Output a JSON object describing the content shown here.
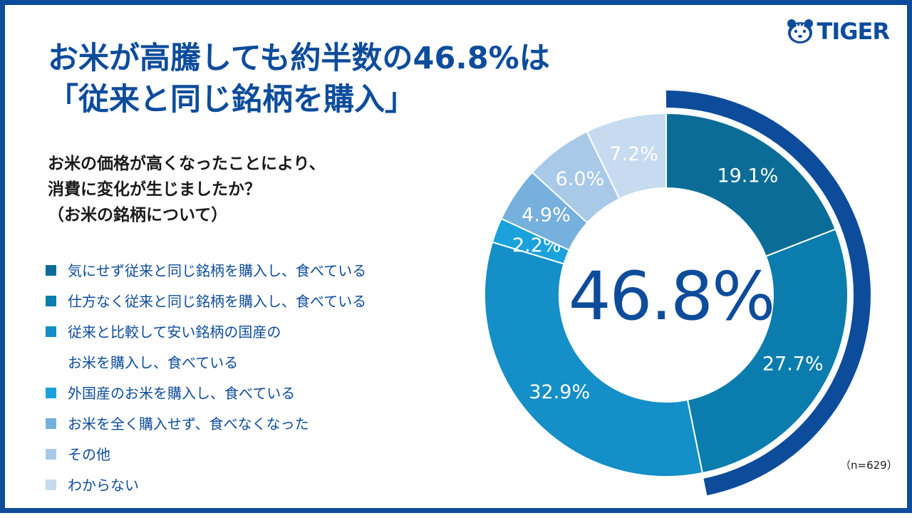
{
  "brand": {
    "name": "TIGER",
    "color": "#0d4c9b"
  },
  "title": {
    "line1": "お米が高騰しても約半数の46.8%は",
    "line2": "「従来と同じ銘柄を購入」"
  },
  "question": {
    "line1": "お米の価格が高くなったことにより、",
    "line2": "消費に変化が生じましたか？",
    "line3": "（お米の銘柄について）"
  },
  "center_value": "46.8%",
  "sample_size": "（n=629）",
  "chart_data": {
    "type": "pie",
    "unit": "%",
    "title": "",
    "slices": [
      {
        "label": "気にせず従来と同じ銘柄を購入し、食べている",
        "value": 19.1,
        "display": "19.1%",
        "color": "#0b6d97"
      },
      {
        "label": "仕方なく従来と同じ銘柄を購入し、食べている",
        "value": 27.7,
        "display": "27.7%",
        "color": "#0a7cad"
      },
      {
        "label": "従来と比較して安い銘柄の国産のお米を購入し、食べている",
        "label_line1": "従来と比較して安い銘柄の国産の",
        "label_line2": "お米を購入し、食べている",
        "value": 32.9,
        "display": "32.9%",
        "color": "#148fc7"
      },
      {
        "label": "外国産のお米を購入し、食べている",
        "value": 2.2,
        "display": "2.2%",
        "color": "#1ba2dc"
      },
      {
        "label": "お米を全く購入せず、食べなくなった",
        "value": 4.9,
        "display": "4.9%",
        "color": "#76b0dc"
      },
      {
        "label": "その他",
        "value": 6.0,
        "display": "6.0%",
        "color": "#a9c9e9"
      },
      {
        "label": "わからない",
        "value": 7.2,
        "display": "7.2%",
        "color": "#c6dbef"
      }
    ],
    "highlight": {
      "value": 46.8,
      "color": "#0d4c9b"
    },
    "legend_position": "left"
  }
}
